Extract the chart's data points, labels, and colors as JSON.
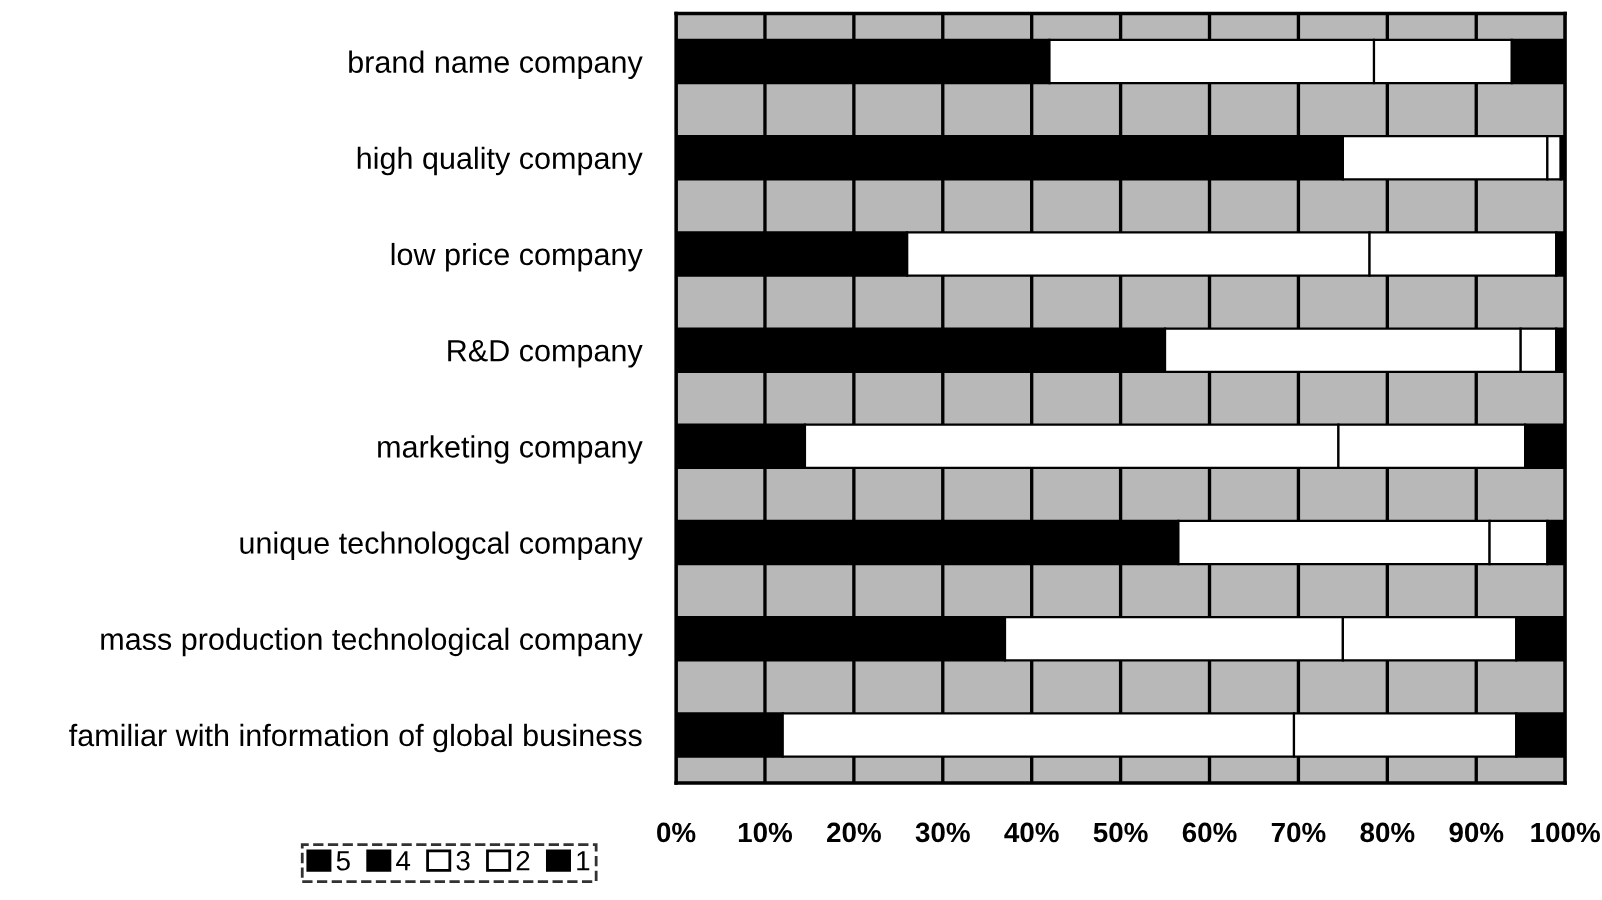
{
  "chart_data": {
    "type": "bar",
    "orientation": "horizontal",
    "stacked": true,
    "categories": [
      "brand name company",
      "high quality company",
      "low price company",
      "R&D company",
      "marketing company",
      "unique technologcal company",
      "mass production technological company",
      "familiar with information of global business"
    ],
    "series": [
      {
        "name": "5",
        "color": "#000000",
        "values": [
          null,
          null,
          null,
          null,
          null,
          null,
          null,
          null
        ]
      },
      {
        "name": "4",
        "color": "#000000",
        "values": [
          42,
          75,
          26,
          55,
          14.5,
          56.5,
          37,
          12
        ]
      },
      {
        "name": "3",
        "color": "#ffffff",
        "values": [
          36.5,
          23,
          52,
          40,
          60,
          35,
          38,
          57.5
        ]
      },
      {
        "name": "2",
        "color": "#ffffff",
        "values": [
          15.5,
          1.5,
          21,
          4,
          21,
          6.5,
          19.5,
          25
        ]
      },
      {
        "name": "1",
        "color": "#000000",
        "values": [
          6,
          0.5,
          1,
          1,
          4.5,
          2,
          5.5,
          5.5
        ]
      }
    ],
    "xlim": [
      0,
      100
    ],
    "xticks": [
      {
        "value": 0,
        "label": "0%"
      },
      {
        "value": 10,
        "label": "10%"
      },
      {
        "value": 20,
        "label": "20%"
      },
      {
        "value": 30,
        "label": "30%"
      },
      {
        "value": 40,
        "label": "40%"
      },
      {
        "value": 50,
        "label": "50%"
      },
      {
        "value": 60,
        "label": "60%"
      },
      {
        "value": 70,
        "label": "70%"
      },
      {
        "value": 80,
        "label": "80%"
      },
      {
        "value": 90,
        "label": "90%"
      },
      {
        "value": 100,
        "label": "100%"
      }
    ],
    "grid": "x",
    "legend": "bottom left"
  }
}
